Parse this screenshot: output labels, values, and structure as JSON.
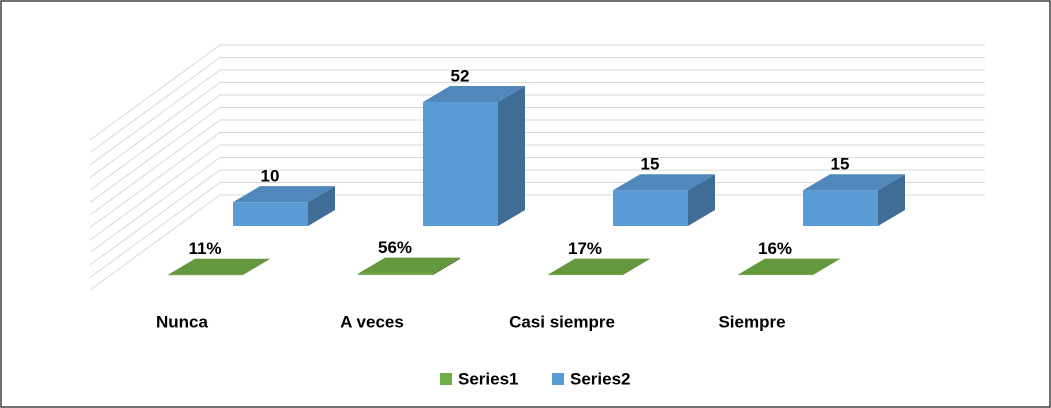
{
  "chart_data": {
    "type": "bar3d",
    "categories": [
      "Nunca",
      "A veces",
      "Casi siempre",
      "Siempre"
    ],
    "series": [
      {
        "name": "Series1",
        "color": "#70ad47",
        "values": [
          0.11,
          0.56,
          0.17,
          0.16
        ],
        "value_labels": [
          "11%",
          "56%",
          "17%",
          "16%"
        ]
      },
      {
        "name": "Series2",
        "color": "#5b9bd5",
        "values": [
          10,
          52,
          15,
          15
        ]
      }
    ],
    "ylim": [
      0,
      60
    ],
    "yticks": [
      0,
      5,
      10,
      15,
      20,
      25,
      30,
      35,
      40,
      45,
      50,
      55,
      60
    ],
    "grid": true,
    "legend": "bottom"
  }
}
